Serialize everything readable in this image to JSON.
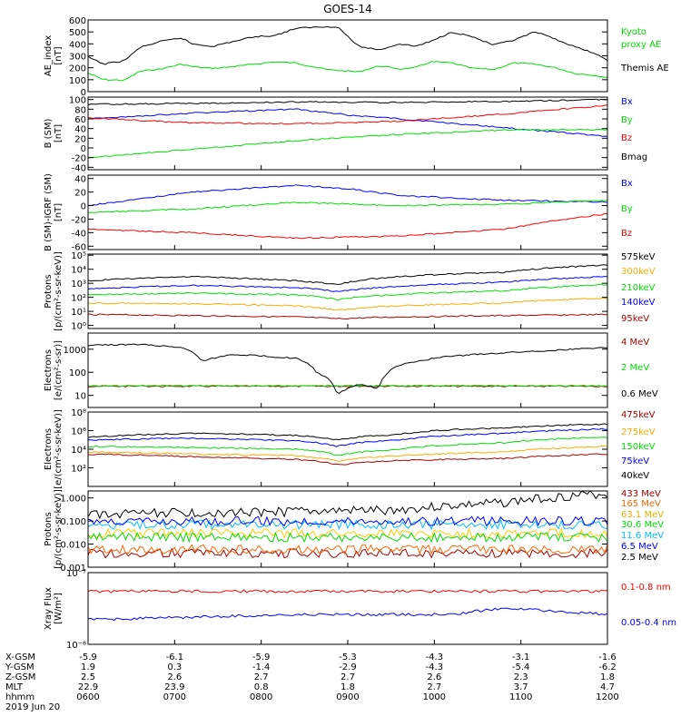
{
  "title": "GOES-14",
  "chart_data": [
    {
      "type": "line",
      "id": "ae",
      "ylabel": [
        "AE_index",
        "[nT]"
      ],
      "ylim": [
        0,
        600
      ],
      "yticks": [
        "0",
        "100",
        "200",
        "300",
        "400",
        "500",
        "600"
      ],
      "series": [
        {
          "name": "Kyoto proxy AE",
          "color": "#00e000",
          "x": [
            0,
            0.03,
            0.07,
            0.1,
            0.14,
            0.18,
            0.2,
            0.24,
            0.28,
            0.32,
            0.36,
            0.4,
            0.46,
            0.52,
            0.56,
            0.6,
            0.63,
            0.66,
            0.7,
            0.74,
            0.78,
            0.82,
            0.86,
            0.9,
            0.94,
            0.97,
            1
          ],
          "values": [
            155,
            100,
            95,
            170,
            190,
            230,
            210,
            195,
            210,
            230,
            250,
            240,
            185,
            165,
            215,
            190,
            200,
            250,
            240,
            195,
            185,
            240,
            230,
            200,
            150,
            140,
            120
          ]
        },
        {
          "name": "Themis AE",
          "color": "#000000",
          "x": [
            0,
            0.03,
            0.07,
            0.1,
            0.14,
            0.18,
            0.2,
            0.24,
            0.28,
            0.32,
            0.36,
            0.4,
            0.44,
            0.48,
            0.52,
            0.56,
            0.6,
            0.63,
            0.66,
            0.7,
            0.74,
            0.78,
            0.82,
            0.86,
            0.9,
            0.94,
            0.97,
            1
          ],
          "values": [
            290,
            230,
            260,
            370,
            420,
            450,
            400,
            380,
            420,
            460,
            470,
            530,
            540,
            545,
            380,
            350,
            400,
            380,
            420,
            500,
            460,
            390,
            430,
            500,
            440,
            370,
            330,
            260
          ]
        }
      ]
    },
    {
      "type": "line",
      "id": "bsm",
      "ylabel": [
        "B (SM)",
        "[nT]"
      ],
      "ylim": [
        -45,
        105
      ],
      "yticks": [
        "-40",
        "-20",
        "0",
        "20",
        "40",
        "60",
        "80",
        "100"
      ],
      "series": [
        {
          "name": "Bx",
          "color": "#0000ff",
          "x": [
            0,
            0.2,
            0.4,
            0.5,
            0.6,
            0.8,
            1
          ],
          "values": [
            60,
            72,
            80,
            68,
            60,
            42,
            24
          ]
        },
        {
          "name": "By",
          "color": "#00e000",
          "x": [
            0,
            0.2,
            0.4,
            0.6,
            0.8,
            1
          ],
          "values": [
            -20,
            -3,
            15,
            28,
            37,
            38
          ]
        },
        {
          "name": "Bz",
          "color": "#ff0000",
          "x": [
            0,
            0.2,
            0.4,
            0.6,
            0.8,
            1
          ],
          "values": [
            62,
            52,
            50,
            55,
            70,
            88
          ]
        },
        {
          "name": "Bmag",
          "color": "#000000",
          "x": [
            0,
            0.2,
            0.4,
            0.6,
            0.8,
            1
          ],
          "values": [
            90,
            92,
            95,
            94,
            96,
            100
          ]
        }
      ]
    },
    {
      "type": "line",
      "id": "bigrf",
      "ylabel": [
        "B (SM)-IGRF (SM)",
        "[nT]"
      ],
      "ylim": [
        -65,
        45
      ],
      "yticks": [
        "-60",
        "-40",
        "-20",
        "0",
        "20",
        "40"
      ],
      "series": [
        {
          "name": "Bx",
          "color": "#0000ff",
          "x": [
            0,
            0.2,
            0.4,
            0.5,
            0.6,
            0.8,
            1
          ],
          "values": [
            0,
            20,
            30,
            25,
            15,
            8,
            5
          ]
        },
        {
          "name": "By",
          "color": "#00e000",
          "x": [
            0,
            0.2,
            0.4,
            0.6,
            0.8,
            1
          ],
          "values": [
            -10,
            -5,
            5,
            0,
            2,
            8
          ]
        },
        {
          "name": "Bz",
          "color": "#ff0000",
          "x": [
            0,
            0.2,
            0.4,
            0.6,
            0.8,
            0.9,
            1
          ],
          "values": [
            -35,
            -40,
            -48,
            -45,
            -35,
            -22,
            -12
          ]
        }
      ]
    },
    {
      "type": "line",
      "id": "protons_kev",
      "ylabel": [
        "Protons",
        "[p/(cm²-s-sr-keV)]"
      ],
      "scale": "log",
      "ylim": [
        0.6,
        120000.0
      ],
      "yticks": [
        "10⁰",
        "10¹",
        "10²",
        "10³",
        "10⁴",
        "10⁵"
      ],
      "series": [
        {
          "name": "575keV",
          "color": "#000000",
          "x": [
            0,
            0.2,
            0.4,
            0.48,
            0.6,
            0.8,
            1
          ],
          "values": [
            1500,
            3000,
            1500,
            800,
            3000,
            6000,
            20000
          ]
        },
        {
          "name": "300keV",
          "color": "#ffaa00",
          "x": [
            0,
            0.2,
            0.4,
            0.48,
            0.6,
            0.8,
            1
          ],
          "values": [
            40,
            35,
            25,
            12,
            25,
            40,
            90
          ]
        },
        {
          "name": "210keV",
          "color": "#00e000",
          "x": [
            0,
            0.2,
            0.4,
            0.48,
            0.6,
            0.8,
            1
          ],
          "values": [
            150,
            200,
            150,
            70,
            160,
            300,
            800
          ]
        },
        {
          "name": "140keV",
          "color": "#0000ff",
          "x": [
            0,
            0.2,
            0.4,
            0.48,
            0.6,
            0.8,
            1
          ],
          "values": [
            400,
            700,
            500,
            250,
            600,
            1200,
            3000
          ]
        },
        {
          "name": "95keV",
          "color": "#aa0000",
          "x": [
            0,
            0.2,
            0.4,
            0.48,
            0.6,
            0.8,
            1
          ],
          "values": [
            6,
            5,
            4,
            3,
            4,
            5,
            6
          ]
        }
      ]
    },
    {
      "type": "line",
      "id": "electrons_mev",
      "ylabel": [
        "Electrons",
        "[e/(cm²-s-sr)]"
      ],
      "scale": "log",
      "ylim": [
        3,
        5000
      ],
      "yticks": [
        "10",
        "100",
        "1000"
      ],
      "series": [
        {
          "name": "4 MeV",
          "color": "#aa0000",
          "x": [
            0,
            1
          ],
          "values": [
            25,
            25
          ]
        },
        {
          "name": "2 MeV",
          "color": "#00e000",
          "x": [
            0,
            1
          ],
          "values": [
            26,
            26
          ]
        },
        {
          "name": "0.6 MeV",
          "color": "#000000",
          "x": [
            0,
            0.1,
            0.18,
            0.22,
            0.28,
            0.4,
            0.44,
            0.48,
            0.52,
            0.56,
            0.6,
            0.7,
            0.8,
            0.9,
            1
          ],
          "values": [
            1500,
            1600,
            1200,
            300,
            600,
            400,
            100,
            10,
            30,
            20,
            200,
            500,
            700,
            900,
            1200
          ]
        }
      ]
    },
    {
      "type": "line",
      "id": "electrons_kev",
      "ylabel": [
        "Electrons",
        "[e/(cm²-s-sr-keV)]"
      ],
      "scale": "log",
      "ylim": [
        1,
        100000000.0
      ],
      "yticks": [
        "10²",
        "10⁴",
        "10⁶",
        "10⁸"
      ],
      "series": [
        {
          "name": "475keV",
          "color": "#aa0000",
          "x": [
            0,
            0.2,
            0.4,
            0.48,
            0.6,
            0.8,
            1
          ],
          "values": [
            3000,
            1500,
            800,
            200,
            600,
            1000,
            3000
          ]
        },
        {
          "name": "275keV",
          "color": "#ffaa00",
          "x": [
            0,
            0.2,
            0.4,
            0.48,
            0.6,
            0.8,
            1
          ],
          "values": [
            5000,
            3000,
            2000,
            500,
            2000,
            5000,
            20000
          ]
        },
        {
          "name": "150keV",
          "color": "#00e000",
          "x": [
            0,
            0.2,
            0.4,
            0.48,
            0.6,
            0.8,
            1
          ],
          "values": [
            20000,
            15000,
            10000,
            2000,
            10000,
            50000,
            200000
          ]
        },
        {
          "name": "75keV",
          "color": "#0000ff",
          "x": [
            0,
            0.2,
            0.4,
            0.48,
            0.6,
            0.8,
            1
          ],
          "values": [
            100000,
            150000,
            80000,
            20000,
            100000,
            500000,
            1500000
          ]
        },
        {
          "name": "40keV",
          "color": "#000000",
          "x": [
            0,
            0.2,
            0.4,
            0.48,
            0.6,
            0.8,
            1
          ],
          "values": [
            200000,
            500000,
            300000,
            100000,
            400000,
            2000000,
            5000000
          ]
        }
      ]
    },
    {
      "type": "line",
      "id": "protons_mev",
      "ylabel": [
        "Protons",
        "[p/(cm²-s-sr-keV)]"
      ],
      "scale": "log",
      "ylim": [
        0.001,
        2
      ],
      "yticks": [
        "0.001",
        "0.010",
        "0.100",
        "1.000"
      ],
      "series": [
        {
          "name": "433 MeV",
          "color": "#aa0000",
          "x": [
            0,
            1
          ],
          "values": [
            0.004,
            0.004
          ]
        },
        {
          "name": "165 MeV",
          "color": "#ff6600",
          "x": [
            0,
            1
          ],
          "values": [
            0.006,
            0.006
          ]
        },
        {
          "name": "63.1 MeV",
          "color": "#ffcc00",
          "x": [
            0,
            1
          ],
          "values": [
            0.03,
            0.03
          ]
        },
        {
          "name": "30.6 MeV",
          "color": "#00e000",
          "x": [
            0,
            1
          ],
          "values": [
            0.02,
            0.02
          ]
        },
        {
          "name": "11.6 MeV",
          "color": "#00c0ff",
          "x": [
            0,
            1
          ],
          "values": [
            0.07,
            0.07
          ]
        },
        {
          "name": "6.5 MeV",
          "color": "#0000ff",
          "x": [
            0,
            1
          ],
          "values": [
            0.1,
            0.1
          ]
        },
        {
          "name": "2.5 MeV",
          "color": "#000000",
          "x": [
            0,
            0.4,
            0.6,
            0.8,
            1
          ],
          "values": [
            0.2,
            0.25,
            0.3,
            0.6,
            1.5
          ]
        }
      ]
    },
    {
      "type": "line",
      "id": "xray",
      "ylabel": [
        "Xray Flux",
        "[W/m²]"
      ],
      "scale": "log",
      "ylim": [
        1e-08,
        1e-07
      ],
      "yticks": [
        "10⁻⁸",
        "10⁻⁷"
      ],
      "series": [
        {
          "name": "0.1-0.8 nm",
          "color": "#ff0000",
          "x": [
            0,
            1
          ],
          "values": [
            5.5e-08,
            5.5e-08
          ]
        },
        {
          "name": "0.05-0.4 nm",
          "color": "#0000ff",
          "x": [
            0,
            0.4,
            0.7,
            0.8,
            1
          ],
          "values": [
            2.2e-08,
            2.6e-08,
            2.6e-08,
            3.2e-08,
            2.6e-08
          ]
        }
      ]
    }
  ],
  "orbit_table": {
    "rows": [
      {
        "label": "X-GSM",
        "values": [
          "-5.9",
          "-6.1",
          "-5.9",
          "-5.3",
          "-4.3",
          "-3.1",
          "-1.6"
        ]
      },
      {
        "label": "Y-GSM",
        "values": [
          "1.9",
          "0.3",
          "-1.4",
          "-2.9",
          "-4.3",
          "-5.4",
          "-6.2"
        ]
      },
      {
        "label": "Z-GSM",
        "values": [
          "2.5",
          "2.6",
          "2.7",
          "2.7",
          "2.6",
          "2.3",
          "1.8"
        ]
      },
      {
        "label": "MLT",
        "values": [
          "22.9",
          "23.9",
          "0.8",
          "1.8",
          "2.7",
          "3.7",
          "4.7"
        ]
      },
      {
        "label": "hhmm",
        "values": [
          "0600",
          "0700",
          "0800",
          "0900",
          "1000",
          "1100",
          "1200"
        ]
      }
    ],
    "date": "2019 Jun 20"
  }
}
